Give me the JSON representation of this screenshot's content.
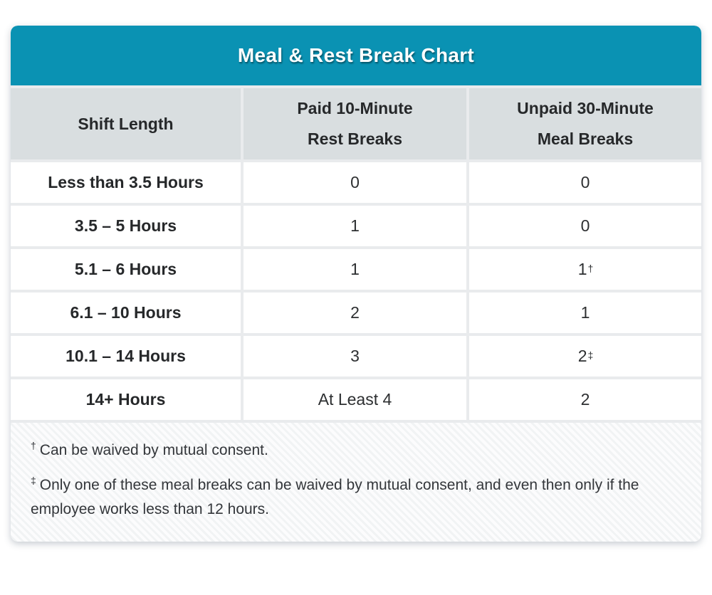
{
  "title": "Meal & Rest Break Chart",
  "colors": {
    "teal_accent": "#0a92b3",
    "header_row_bg": "#d9dee0",
    "gridline": "#e9ebed",
    "title_text": "#ffffff",
    "body_text": "#2d2f31"
  },
  "table": {
    "columns": [
      {
        "line1": "Shift Length",
        "line2": ""
      },
      {
        "line1": "Paid 10-Minute",
        "line2": "Rest Breaks"
      },
      {
        "line1": "Unpaid 30-Minute",
        "line2": "Meal Breaks"
      }
    ],
    "rows": [
      {
        "shift": "Less than 3.5 Hours",
        "rest": "0",
        "rest_sup": "",
        "meal": "0",
        "meal_sup": ""
      },
      {
        "shift": "3.5 – 5 Hours",
        "rest": "1",
        "rest_sup": "",
        "meal": "0",
        "meal_sup": ""
      },
      {
        "shift": "5.1 – 6 Hours",
        "rest": "1",
        "rest_sup": "",
        "meal": "1",
        "meal_sup": "†"
      },
      {
        "shift": "6.1 – 10 Hours",
        "rest": "2",
        "rest_sup": "",
        "meal": "1",
        "meal_sup": ""
      },
      {
        "shift": "10.1 – 14 Hours",
        "rest": "3",
        "rest_sup": "",
        "meal": "2",
        "meal_sup": "‡"
      },
      {
        "shift": "14+ Hours",
        "rest": "At Least 4",
        "rest_sup": "",
        "meal": "2",
        "meal_sup": ""
      }
    ]
  },
  "footnotes": [
    {
      "symbol": "†",
      "text": "Can be waived by mutual consent."
    },
    {
      "symbol": "‡",
      "text": "Only one of these meal breaks can be waived by mutual consent, and even then only if the employee works less than 12 hours."
    }
  ],
  "chart_data": {
    "type": "table",
    "title": "Meal & Rest Break Chart",
    "columns": [
      "Shift Length",
      "Paid 10-Minute Rest Breaks",
      "Unpaid 30-Minute Meal Breaks"
    ],
    "rows": [
      [
        "Less than 3.5 Hours",
        "0",
        "0"
      ],
      [
        "3.5 – 5 Hours",
        "1",
        "0"
      ],
      [
        "5.1 – 6 Hours",
        "1",
        "1†"
      ],
      [
        "6.1 – 10 Hours",
        "2",
        "1"
      ],
      [
        "10.1 – 14 Hours",
        "3",
        "2‡"
      ],
      [
        "14+ Hours",
        "At Least 4",
        "2"
      ]
    ],
    "footnotes": [
      "† Can be waived by mutual consent.",
      "‡ Only one of these meal breaks can be waived by mutual consent, and even then only if the employee works less than 12 hours."
    ]
  }
}
